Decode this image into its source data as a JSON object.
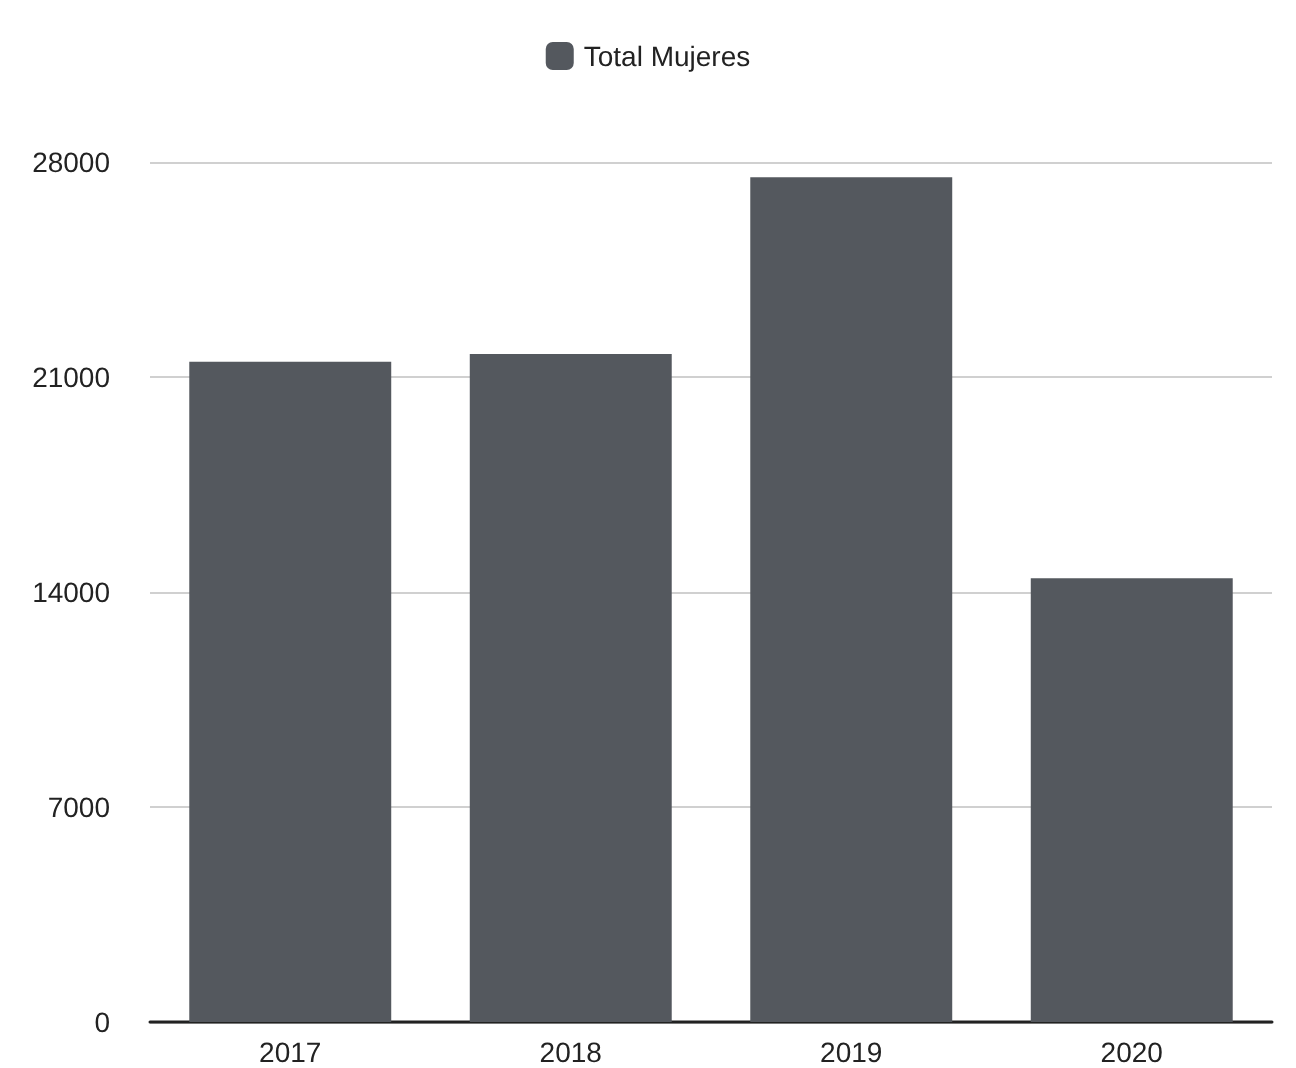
{
  "chart_data": {
    "type": "bar",
    "categories": [
      "2017",
      "2018",
      "2019",
      "2020"
    ],
    "series": [
      {
        "name": "Total Mujeres",
        "color": "#54585e",
        "values": [
          21500,
          21750,
          27500,
          14450
        ]
      }
    ],
    "ylim": [
      0,
      28000
    ],
    "yticks": [
      0,
      7000,
      14000,
      21000,
      28000
    ],
    "grid": "y",
    "legend": "top"
  }
}
